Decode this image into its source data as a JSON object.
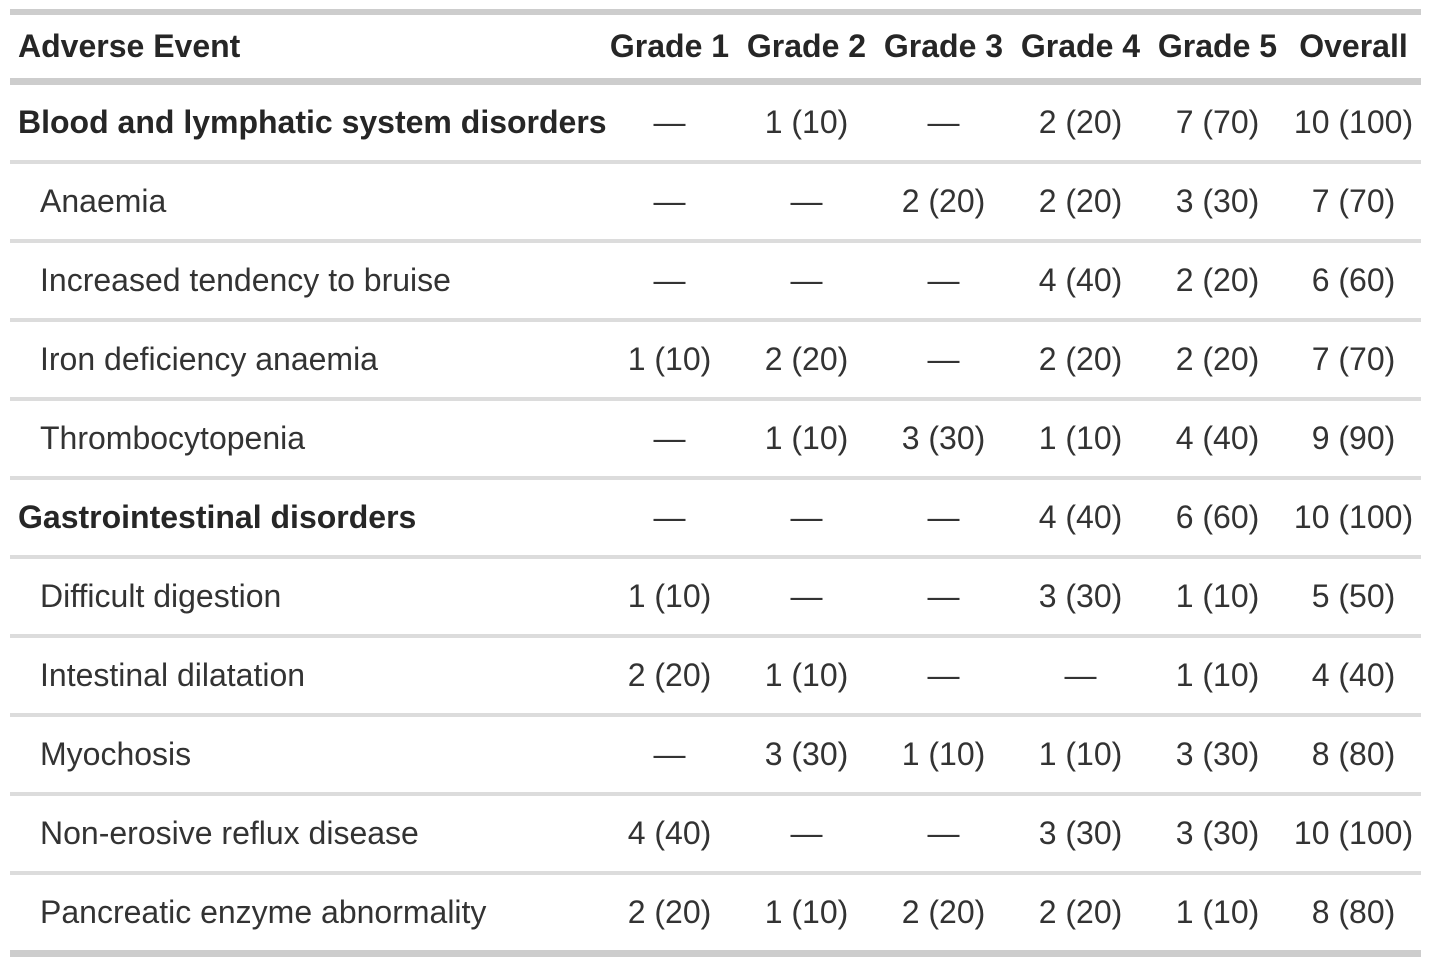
{
  "colors": {
    "background": "#ffffff",
    "text_regular": "#333333",
    "text_bold": "#262626",
    "border_heavy": "#cdcdcd",
    "border_light": "#dcdcdc"
  },
  "table": {
    "columns": [
      "Adverse Event",
      "Grade 1",
      "Grade 2",
      "Grade 3",
      "Grade 4",
      "Grade 5",
      "Overall"
    ],
    "empty_marker": "—",
    "rows": [
      {
        "label": "Blood and lymphatic system disorders",
        "type": "category",
        "values": [
          "—",
          "1 (10)",
          "—",
          "2 (20)",
          "7 (70)",
          "10 (100)"
        ]
      },
      {
        "label": "Anaemia",
        "type": "item",
        "values": [
          "—",
          "—",
          "2 (20)",
          "2 (20)",
          "3 (30)",
          "7 (70)"
        ]
      },
      {
        "label": "Increased tendency to bruise",
        "type": "item",
        "values": [
          "—",
          "—",
          "—",
          "4 (40)",
          "2 (20)",
          "6 (60)"
        ]
      },
      {
        "label": "Iron deficiency anaemia",
        "type": "item",
        "values": [
          "1 (10)",
          "2 (20)",
          "—",
          "2 (20)",
          "2 (20)",
          "7 (70)"
        ]
      },
      {
        "label": "Thrombocytopenia",
        "type": "item",
        "values": [
          "—",
          "1 (10)",
          "3 (30)",
          "1 (10)",
          "4 (40)",
          "9 (90)"
        ]
      },
      {
        "label": "Gastrointestinal disorders",
        "type": "category",
        "values": [
          "—",
          "—",
          "—",
          "4 (40)",
          "6 (60)",
          "10 (100)"
        ]
      },
      {
        "label": "Difficult digestion",
        "type": "item",
        "values": [
          "1 (10)",
          "—",
          "—",
          "3 (30)",
          "1 (10)",
          "5 (50)"
        ]
      },
      {
        "label": "Intestinal dilatation",
        "type": "item",
        "values": [
          "2 (20)",
          "1 (10)",
          "—",
          "—",
          "1 (10)",
          "4 (40)"
        ]
      },
      {
        "label": "Myochosis",
        "type": "item",
        "values": [
          "—",
          "3 (30)",
          "1 (10)",
          "1 (10)",
          "3 (30)",
          "8 (80)"
        ]
      },
      {
        "label": "Non-erosive reflux disease",
        "type": "item",
        "values": [
          "4 (40)",
          "—",
          "—",
          "3 (30)",
          "3 (30)",
          "10 (100)"
        ]
      },
      {
        "label": "Pancreatic enzyme abnormality",
        "type": "item",
        "values": [
          "2 (20)",
          "1 (10)",
          "2 (20)",
          "2 (20)",
          "1 (10)",
          "8 (80)"
        ]
      }
    ]
  }
}
